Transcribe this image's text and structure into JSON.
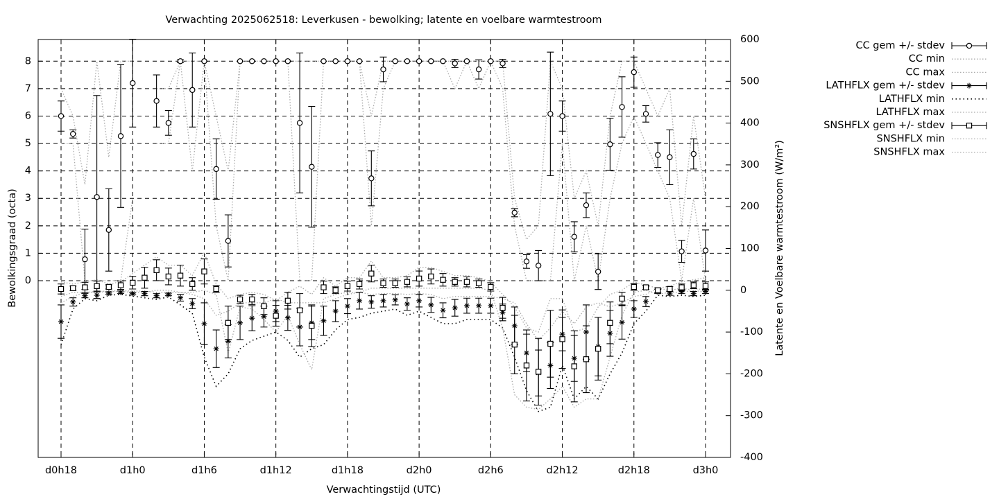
{
  "chart_data": {
    "type": "errorbar",
    "title": "Verwachting 2025062518: Leverkusen - bewolking; latente en voelbare warmtestroom",
    "xlabel": "Verwachtingstijd (UTC)",
    "ylabel": "Bewolkingsgraad (octa)",
    "y2label": "Latente en Voelbare warmtestroom (W/m²)",
    "categories": [
      "d0h18",
      null,
      null,
      null,
      null,
      null,
      "d1h0",
      null,
      null,
      null,
      null,
      null,
      "d1h6",
      null,
      null,
      null,
      null,
      null,
      "d1h12",
      null,
      null,
      null,
      null,
      null,
      "d1h18",
      null,
      null,
      null,
      null,
      null,
      "d2h0",
      null,
      null,
      null,
      null,
      null,
      "d2h6",
      null,
      null,
      null,
      null,
      null,
      "d2h12",
      null,
      null,
      null,
      null,
      null,
      "d2h18",
      null,
      null,
      null,
      null,
      null,
      "d3h0"
    ],
    "ylim": [
      -6.44,
      8.79
    ],
    "yticks": [
      0,
      1,
      2,
      3,
      4,
      5,
      6,
      7,
      8
    ],
    "y2lim": [
      -400,
      600
    ],
    "y2ticks": [
      -400,
      -300,
      -200,
      -100,
      0,
      100,
      200,
      300,
      400,
      500,
      600
    ],
    "grid": true,
    "legend": "outside-right",
    "series": [
      {
        "name": "CC gem +/- stdev",
        "color": "#000000",
        "style": "errorbars",
        "marker": "circle",
        "values": [
          6.0,
          5.35,
          0.78,
          3.05,
          1.85,
          5.27,
          7.2,
          null,
          6.55,
          5.75,
          8.0,
          6.95,
          8.0,
          4.07,
          1.45,
          8.0,
          8.0,
          8.0,
          8.0,
          8.0,
          5.75,
          4.15,
          8.0,
          8.0,
          8.0,
          8.0,
          3.73,
          7.7,
          8.0,
          8.0,
          8.0,
          8.0,
          8.0,
          7.92,
          8.0,
          7.7,
          8.0,
          7.92,
          2.48,
          0.7,
          0.55,
          6.08,
          6.0,
          1.6,
          2.75,
          0.33,
          4.97,
          6.33,
          7.6,
          6.08,
          4.58,
          4.5,
          1.07,
          4.62,
          1.1
        ],
        "errors": [
          0.55,
          0.15,
          1.1,
          3.7,
          1.5,
          2.6,
          1.6,
          null,
          0.95,
          0.45,
          0.05,
          1.35,
          0,
          1.1,
          0.95,
          0,
          0,
          0,
          0,
          0,
          2.55,
          2.2,
          0,
          0,
          0,
          0,
          1.0,
          0.45,
          0,
          0,
          0,
          0,
          0,
          0.15,
          0,
          0.35,
          0,
          0.15,
          0.15,
          0.25,
          0.55,
          2.25,
          0.55,
          0.55,
          0.45,
          0.65,
          0.95,
          1.1,
          0.55,
          0.3,
          0.45,
          1.0,
          0.4,
          0.55,
          0.75
        ]
      },
      {
        "name": "CC min",
        "color": "#aaaaaa",
        "style": "dotted",
        "values": [
          5,
          5,
          0,
          0,
          0,
          0,
          3,
          null,
          5,
          5,
          8,
          4,
          8,
          2,
          0,
          8,
          8,
          8,
          8,
          8,
          0,
          0,
          8,
          8,
          8,
          8,
          2,
          7,
          8,
          8,
          8,
          8,
          8,
          7,
          8,
          7,
          8,
          7,
          2,
          0,
          0,
          0,
          5,
          0,
          2,
          0,
          3,
          5,
          6,
          5,
          4,
          3,
          0,
          3,
          0
        ]
      },
      {
        "name": "CC max",
        "color": "#aaaaaa",
        "style": "dotted",
        "values": [
          7,
          6,
          3.5,
          8,
          4.5,
          8,
          8,
          null,
          7,
          7,
          8,
          8,
          8,
          6,
          4,
          8,
          8,
          8,
          8,
          8,
          8,
          8,
          8,
          8,
          8,
          8,
          6,
          8,
          8,
          8,
          8,
          8,
          8,
          8,
          8,
          8,
          8,
          8,
          3,
          1.5,
          2,
          8,
          7,
          3,
          4,
          2,
          6,
          8,
          8,
          7,
          6,
          7,
          2,
          6,
          3
        ]
      },
      {
        "name": "LATHFLX gem +/- stdev",
        "color": "#000000",
        "style": "errorbars",
        "marker": "star",
        "axis": "y2",
        "values": [
          -75,
          -28,
          -13,
          -12,
          -7,
          -5,
          -8,
          -8,
          -13,
          -10,
          -18,
          -32,
          -80,
          -140,
          -122,
          -78,
          -67,
          -63,
          -50,
          -66,
          -88,
          -78,
          -73,
          -50,
          -38,
          -25,
          -28,
          -25,
          -23,
          -33,
          -25,
          -35,
          -48,
          -42,
          -37,
          -37,
          -37,
          -53,
          -85,
          -150,
          -198,
          -180,
          -105,
          -163,
          -100,
          -135,
          -103,
          -77,
          -45,
          -27,
          -3,
          -7,
          -3,
          -8,
          -3
        ],
        "errors": [
          40,
          10,
          5,
          8,
          3,
          3,
          3,
          5,
          5,
          3,
          8,
          12,
          50,
          45,
          40,
          40,
          30,
          25,
          25,
          30,
          45,
          40,
          35,
          25,
          18,
          20,
          15,
          15,
          12,
          15,
          15,
          18,
          18,
          20,
          18,
          18,
          18,
          20,
          45,
          45,
          55,
          55,
          40,
          55,
          65,
          70,
          55,
          40,
          20,
          12,
          5,
          5,
          5,
          5,
          5
        ]
      },
      {
        "name": "LATHFLX min",
        "color": "#000000",
        "style": "dotted",
        "axis": "y2",
        "values": [
          -130,
          -45,
          -20,
          -25,
          -12,
          -10,
          -14,
          -18,
          -22,
          -16,
          -35,
          -55,
          -160,
          -230,
          -200,
          -140,
          -120,
          -110,
          -100,
          -120,
          -160,
          -140,
          -130,
          -95,
          -70,
          -65,
          -55,
          -50,
          -45,
          -60,
          -50,
          -65,
          -80,
          -80,
          -70,
          -70,
          -70,
          -90,
          -160,
          -240,
          -290,
          -280,
          -180,
          -260,
          -230,
          -260,
          -200,
          -150,
          -80,
          -50,
          -12,
          -15,
          -12,
          -15,
          -12
        ]
      },
      {
        "name": "LATHFLX max",
        "color": "#aaaaaa",
        "style": "dotted",
        "axis": "y2",
        "values": [
          -30,
          -15,
          -5,
          -3,
          -2,
          -1,
          -2,
          -2,
          -5,
          -5,
          -5,
          -10,
          -20,
          -60,
          -50,
          -30,
          -30,
          -30,
          -20,
          -30,
          -30,
          -30,
          -30,
          -20,
          -10,
          -5,
          -10,
          -8,
          -8,
          -10,
          -8,
          -10,
          -20,
          -15,
          -15,
          -15,
          -15,
          -20,
          -30,
          -80,
          -120,
          -90,
          -50,
          -80,
          -40,
          -30,
          -40,
          -30,
          -15,
          -10,
          5,
          0,
          5,
          0,
          5
        ]
      },
      {
        "name": "SNSHFLX gem +/- stdev",
        "color": "#000000",
        "style": "errorbars",
        "marker": "square",
        "axis": "y2",
        "values": [
          3,
          5,
          7,
          10,
          8,
          12,
          18,
          30,
          48,
          33,
          35,
          15,
          45,
          3,
          -78,
          -22,
          -22,
          -38,
          -61,
          -25,
          -48,
          -85,
          7,
          0,
          10,
          15,
          40,
          17,
          17,
          20,
          28,
          33,
          25,
          20,
          20,
          17,
          8,
          -42,
          -130,
          -180,
          -195,
          -128,
          -117,
          -182,
          -165,
          -140,
          -78,
          -20,
          8,
          7,
          0,
          3,
          7,
          12,
          10
        ],
        "errors": [
          12,
          5,
          12,
          12,
          5,
          10,
          15,
          25,
          25,
          20,
          25,
          15,
          30,
          8,
          40,
          10,
          12,
          20,
          25,
          20,
          40,
          50,
          15,
          8,
          12,
          12,
          20,
          10,
          10,
          12,
          18,
          18,
          15,
          10,
          12,
          10,
          10,
          25,
          70,
          85,
          80,
          80,
          70,
          85,
          80,
          75,
          50,
          15,
          8,
          5,
          5,
          6,
          8,
          8,
          10
        ]
      },
      {
        "name": "SNSHFLX min",
        "color": "#aaaaaa",
        "style": "dotted",
        "axis": "y2",
        "values": [
          -15,
          -5,
          -5,
          -5,
          -3,
          -3,
          -5,
          -5,
          0,
          0,
          -5,
          -5,
          0,
          -10,
          -150,
          -40,
          -45,
          -70,
          -100,
          -60,
          -130,
          -190,
          -20,
          -10,
          -5,
          -5,
          5,
          5,
          5,
          5,
          5,
          5,
          5,
          5,
          5,
          5,
          0,
          -90,
          -250,
          -280,
          -285,
          -260,
          -230,
          -280,
          -260,
          -260,
          -160,
          -60,
          -5,
          0,
          -10,
          -5,
          -5,
          0,
          -5
        ]
      },
      {
        "name": "SNSHFLX max",
        "color": "#aaaaaa",
        "style": "dotted",
        "axis": "y2",
        "values": [
          20,
          15,
          20,
          25,
          15,
          20,
          40,
          60,
          80,
          60,
          60,
          35,
          90,
          15,
          -20,
          -10,
          -5,
          -10,
          -25,
          -5,
          10,
          -10,
          30,
          10,
          30,
          30,
          70,
          30,
          30,
          35,
          55,
          55,
          45,
          35,
          35,
          30,
          20,
          -10,
          -40,
          -90,
          -100,
          -20,
          -20,
          -100,
          -90,
          -40,
          -10,
          0,
          20,
          12,
          5,
          10,
          20,
          25,
          30
        ]
      }
    ]
  }
}
